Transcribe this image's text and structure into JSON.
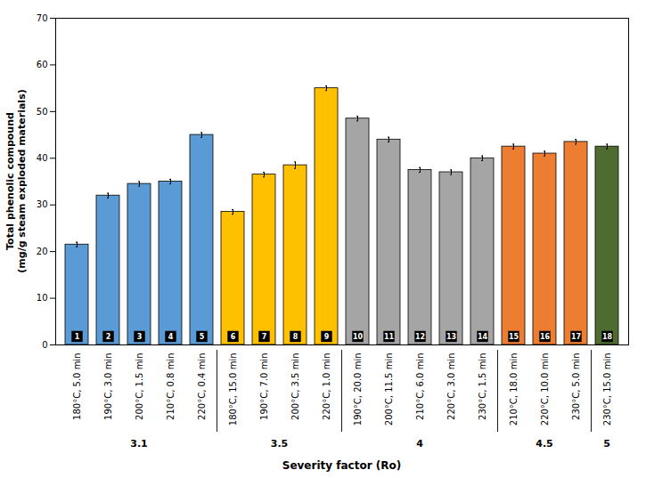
{
  "chart_data": {
    "type": "bar",
    "categories": [
      "180°C, 5.0 min",
      "190°C, 3.0 min",
      "200°C, 1.5 min",
      "210°C, 0.8 min",
      "220°C, 0.4 min",
      "180°C, 15.0 min",
      "190°C, 7.0 min",
      "200°C, 3.5 min",
      "220°C, 1.0 min",
      "190°C, 20.0 min",
      "200°C, 11.5 min",
      "210°C, 6.0 min",
      "220°C, 3.0 min",
      "230°C, 1.5 min",
      "210°C, 18.0 min",
      "220°C, 10.0 min",
      "230°C, 5.0 min",
      "230°C, 15.0 min"
    ],
    "values": [
      21.5,
      32.0,
      34.5,
      35.0,
      45.0,
      28.5,
      36.5,
      38.5,
      55.0,
      48.5,
      44.0,
      37.5,
      37.0,
      40.0,
      42.5,
      41.0,
      43.5,
      42.5
    ],
    "errors": [
      0.5,
      0.5,
      0.5,
      0.5,
      0.5,
      0.5,
      0.5,
      0.7,
      0.5,
      0.5,
      0.5,
      0.5,
      0.5,
      0.5,
      0.5,
      0.5,
      0.5,
      0.5
    ],
    "colors": [
      "#5B9BD5",
      "#5B9BD5",
      "#5B9BD5",
      "#5B9BD5",
      "#5B9BD5",
      "#FFC000",
      "#FFC000",
      "#FFC000",
      "#FFC000",
      "#A5A5A5",
      "#A5A5A5",
      "#A5A5A5",
      "#A5A5A5",
      "#A5A5A5",
      "#ED7D31",
      "#ED7D31",
      "#ED7D31",
      "#4E6B30"
    ],
    "bar_labels": [
      "1",
      "2",
      "3",
      "4",
      "5",
      "6",
      "7",
      "8",
      "9",
      "10",
      "11",
      "12",
      "13",
      "14",
      "15",
      "16",
      "17",
      "18"
    ],
    "groups": [
      {
        "label": "3.1",
        "size": 5
      },
      {
        "label": "3.5",
        "size": 4
      },
      {
        "label": "4",
        "size": 5
      },
      {
        "label": "4.5",
        "size": 3
      },
      {
        "label": "5",
        "size": 1
      }
    ],
    "xlabel": "Severity factor (Ro)",
    "ylabel": "Total phenolic compound\n(mg/g steam exploded materials)",
    "ylim": [
      0,
      70
    ],
    "yticks": [
      0,
      10,
      20,
      30,
      40,
      50,
      60,
      70
    ],
    "grid": false
  }
}
